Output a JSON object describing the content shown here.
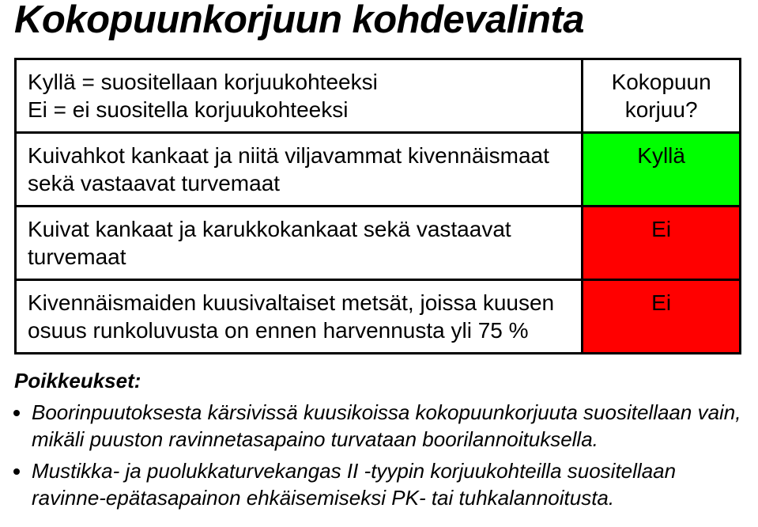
{
  "title": "Kokopuunkorjuun kohdevalinta",
  "table": {
    "header": {
      "left_line1": "Kyllä = suositellaan korjuukohteeksi",
      "left_line2": "Ei = ei suositella korjuukohteeksi",
      "right_line1": "Kokopuun",
      "right_line2": "korjuu?"
    },
    "rows": [
      {
        "left": "Kuivahkot kankaat ja niitä viljavammat kivennäismaat sekä vastaavat turvemaat",
        "right": "Kyllä",
        "right_bg": "#00ff00"
      },
      {
        "left": "Kuivat kankaat ja karukkokankaat sekä vastaavat turvemaat",
        "right": "Ei",
        "right_bg": "#ff0000"
      },
      {
        "left": "Kivennäismaiden kuusivaltaiset metsät, joissa kuusen osuus runkoluvusta on ennen harvennusta yli 75 %",
        "right": "Ei",
        "right_bg": "#ff0000"
      }
    ]
  },
  "exceptions": {
    "title": "Poikkeukset:",
    "items": [
      "Boorinpuutoksesta kärsivissä kuusikoissa kokopuunkorjuuta suositellaan vain, mikäli puuston ravinnetasapaino turvataan boorilannoituksella.",
      "Mustikka- ja puolukkaturvekangas II -tyypin korjuukohteilla suositellaan ravinne-epätasapainon ehkäisemiseksi PK- tai tuhkalannoitusta."
    ]
  },
  "colors": {
    "green": "#00ff00",
    "red": "#ff0000",
    "text": "#000000",
    "background": "#ffffff"
  }
}
